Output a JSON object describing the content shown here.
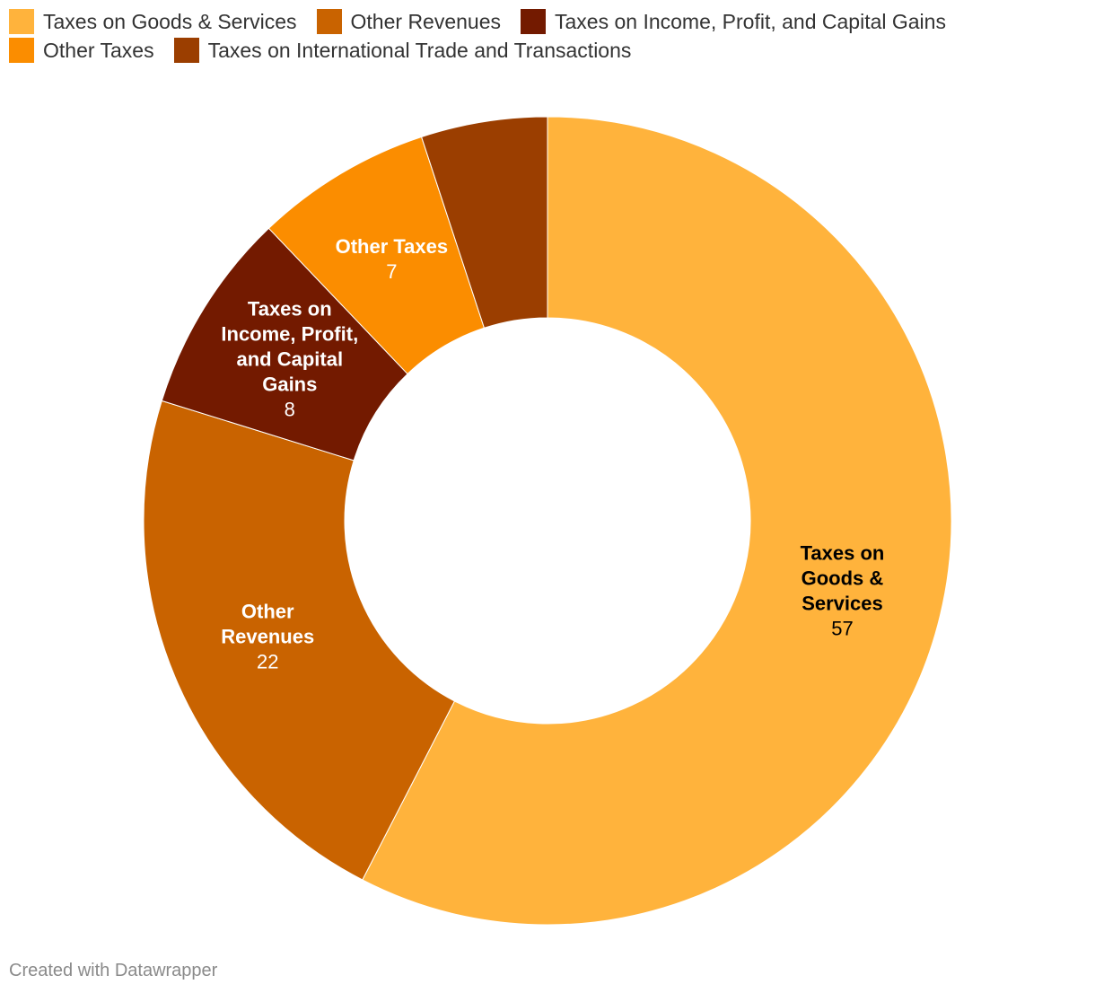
{
  "chart_data": {
    "type": "pie",
    "donut": true,
    "legend_position": "top",
    "slices": [
      {
        "name": "Taxes on Goods & Services",
        "label_lines": [
          "Taxes on",
          "Goods &",
          "Services"
        ],
        "value": 57,
        "color": "#ffb33c",
        "label_color": "#000000",
        "show_label": true
      },
      {
        "name": "Other Revenues",
        "label_lines": [
          "Other",
          "Revenues"
        ],
        "value": 22,
        "color": "#c96300",
        "label_color": "#ffffff",
        "show_label": true
      },
      {
        "name": "Taxes on Income, Profit, and Capital Gains",
        "label_lines": [
          "Taxes on",
          "Income, Profit,",
          "and Capital",
          "Gains"
        ],
        "value": 8,
        "color": "#731a00",
        "label_color": "#ffffff",
        "show_label": true
      },
      {
        "name": "Other Taxes",
        "label_lines": [
          "Other Taxes"
        ],
        "value": 7,
        "color": "#fb8d00",
        "label_color": "#ffffff",
        "show_label": true
      },
      {
        "name": "Taxes on International Trade and Transactions",
        "label_lines": [],
        "value": 5,
        "color": "#9b3e00",
        "label_color": "#ffffff",
        "show_label": false
      }
    ]
  },
  "legend": {
    "rows": [
      [
        {
          "label": "Taxes on Goods & Services",
          "color": "#ffb33c"
        },
        {
          "label": "Other Revenues",
          "color": "#c96300"
        },
        {
          "label": "Taxes on Income, Profit, and Capital Gains",
          "color": "#731a00"
        }
      ],
      [
        {
          "label": "Other Taxes",
          "color": "#fb8d00"
        },
        {
          "label": "Taxes on International Trade and Transactions",
          "color": "#9b3e00"
        }
      ]
    ]
  },
  "footer": {
    "credit": "Created with Datawrapper"
  }
}
